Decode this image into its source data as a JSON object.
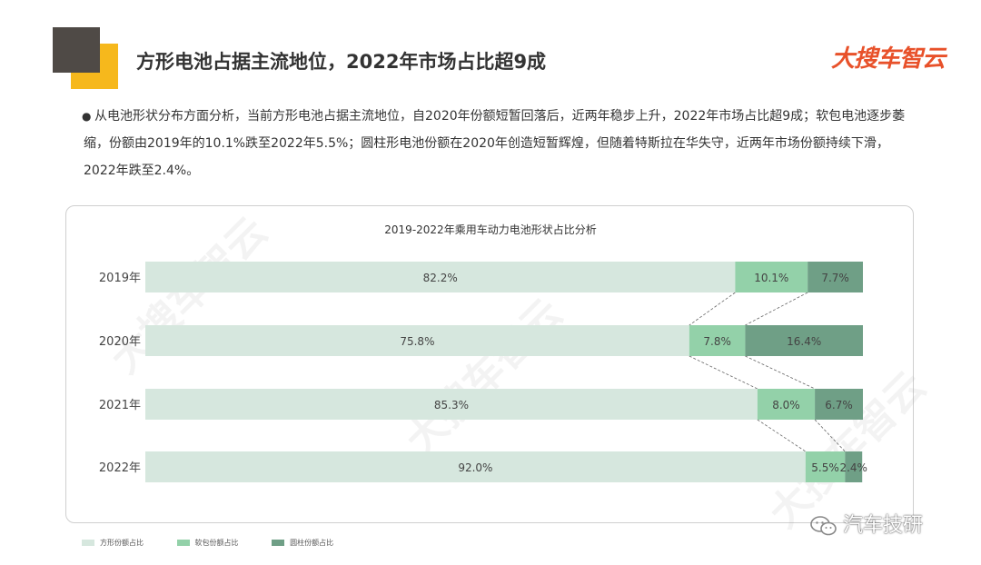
{
  "header": {
    "title": "方形电池占据主流地位，2022年市场占比超9成",
    "brand": "大搜车智云"
  },
  "summary": {
    "bullet": "●",
    "text": "从电池形状分布方面分析，当前方形电池占据主流地位，自2020年份额短暂回落后，近两年稳步上升，2022年市场占比超9成；软包电池逐步萎缩，份额由2019年的10.1%跌至2022年5.5%；圆柱形电池份额在2020年创造短暂辉煌，但随着特斯拉在华失守，近两年市场份额持续下滑，2022年跌至2.4%。"
  },
  "watermark": "大搜车智云",
  "wechat_mark": "汽车技研",
  "colors": {
    "square": "#d6e7de",
    "pouch": "#93d1a9",
    "cylinder": "#6f9f86",
    "accent": "#f6b81c",
    "brand": "#e8512a"
  },
  "chart_data": {
    "type": "bar",
    "stacked": true,
    "orientation": "horizontal",
    "normalized": true,
    "title": "2019-2022年乘用车动力电池形状占比分析",
    "categories": [
      "2019年",
      "2020年",
      "2021年",
      "2022年"
    ],
    "series": [
      {
        "name": "方形份额占比",
        "values": [
          82.2,
          75.8,
          85.3,
          92.0
        ],
        "labels": [
          "82.2%",
          "75.8%",
          "85.3%",
          "92.0%"
        ],
        "color": "#d6e7de"
      },
      {
        "name": "软包份额占比",
        "values": [
          10.1,
          7.8,
          8.0,
          5.5
        ],
        "labels": [
          "10.1%",
          "7.8%",
          "8.0%",
          "5.5%"
        ],
        "color": "#93d1a9"
      },
      {
        "name": "圆柱份额占比",
        "values": [
          7.7,
          16.4,
          6.7,
          2.4
        ],
        "labels": [
          "7.7%",
          "16.4%",
          "6.7%",
          "2.4%"
        ],
        "color": "#6f9f86"
      }
    ],
    "xlim": [
      0,
      100
    ],
    "legend": "bottom-left",
    "grid": false
  }
}
